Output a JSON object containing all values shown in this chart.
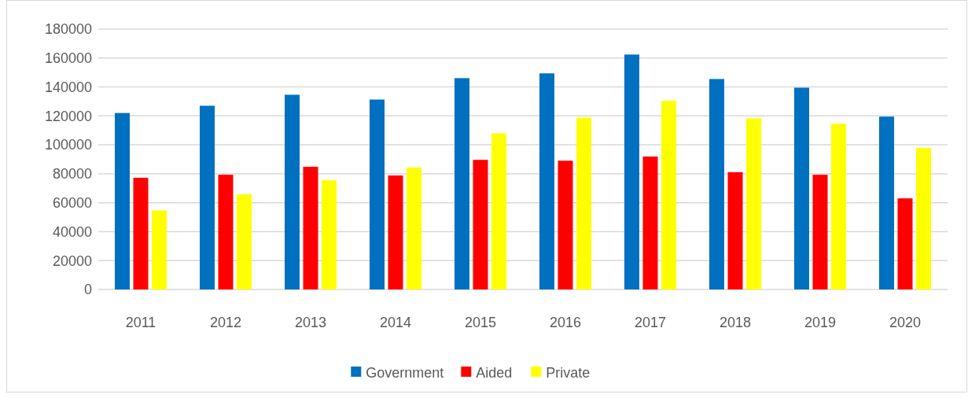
{
  "chart_data": {
    "type": "bar",
    "categories": [
      "2011",
      "2012",
      "2013",
      "2014",
      "2015",
      "2016",
      "2017",
      "2018",
      "2019",
      "2020"
    ],
    "series": [
      {
        "name": "Government",
        "color": "#0070c0",
        "values": [
          122000,
          127000,
          134600,
          131300,
          146100,
          149400,
          162400,
          145500,
          139500,
          119500
        ]
      },
      {
        "name": "Aided",
        "color": "#ff0000",
        "values": [
          77200,
          79300,
          84800,
          78800,
          89600,
          89000,
          91900,
          81100,
          79300,
          63000
        ]
      },
      {
        "name": "Private",
        "color": "#ffff00",
        "values": [
          54700,
          65800,
          75500,
          84400,
          107900,
          118700,
          130400,
          118300,
          114600,
          97800
        ]
      }
    ],
    "ylim": [
      0,
      180000
    ],
    "yticks": [
      0,
      20000,
      40000,
      60000,
      80000,
      100000,
      120000,
      140000,
      160000,
      180000
    ],
    "grid": "y",
    "legend": "bottom"
  }
}
